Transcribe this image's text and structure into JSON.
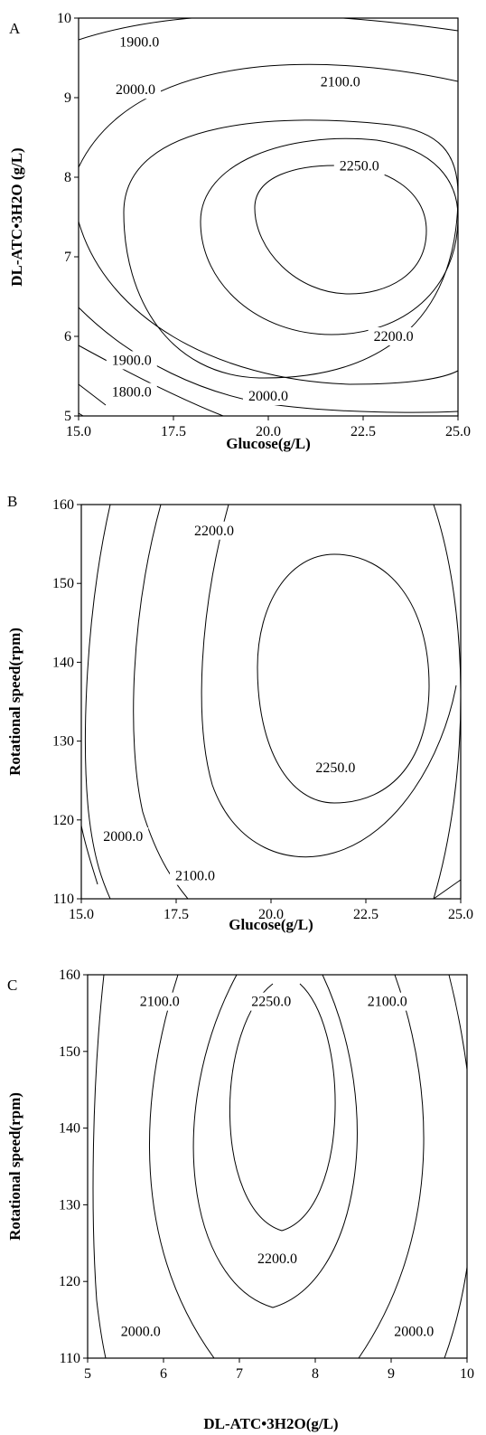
{
  "chart_data": [
    {
      "panel": "A",
      "type": "contour",
      "xlabel": "Glucose(g/L)",
      "ylabel": "DL-ATC•3H2O (g/L)",
      "xlim": [
        15.0,
        25.0
      ],
      "ylim": [
        5,
        10
      ],
      "xticks": [
        "15.0",
        "17.5",
        "20.0",
        "22.5",
        "25.0"
      ],
      "yticks": [
        "5",
        "6",
        "7",
        "8",
        "9",
        "10"
      ],
      "contour_labels": [
        {
          "text": "1900.0",
          "x": 16.6,
          "y": 9.7
        },
        {
          "text": "2000.0",
          "x": 16.5,
          "y": 9.1
        },
        {
          "text": "2100.0",
          "x": 21.9,
          "y": 9.2
        },
        {
          "text": "2250.0",
          "x": 22.4,
          "y": 8.14
        },
        {
          "text": "2200.0",
          "x": 23.3,
          "y": 6.0
        },
        {
          "text": "1900.0",
          "x": 16.4,
          "y": 5.7
        },
        {
          "text": "1800.0",
          "x": 16.4,
          "y": 5.3
        },
        {
          "text": "2000.0",
          "x": 20.0,
          "y": 5.25
        }
      ]
    },
    {
      "panel": "B",
      "type": "contour",
      "xlabel": "Glucose(g/L)",
      "ylabel": "Rotational speed(rpm)",
      "xlim": [
        15.0,
        25.0
      ],
      "ylim": [
        110,
        160
      ],
      "xticks": [
        "15.0",
        "17.5",
        "20.0",
        "22.5",
        "25.0"
      ],
      "yticks": [
        "110",
        "120",
        "130",
        "140",
        "150",
        "160"
      ],
      "contour_labels": [
        {
          "text": "2200.0",
          "x": 18.5,
          "y": 156.7
        },
        {
          "text": "2250.0",
          "x": 21.7,
          "y": 126.6
        },
        {
          "text": "2000.0",
          "x": 16.1,
          "y": 117.9
        },
        {
          "text": "2100.0",
          "x": 18.0,
          "y": 112.9
        }
      ]
    },
    {
      "panel": "C",
      "type": "contour",
      "xlabel": "DL-ATC•3H2O(g/L)",
      "ylabel": "Rotational speed(rpm)",
      "xlim": [
        5,
        10
      ],
      "ylim": [
        110,
        160
      ],
      "xticks": [
        "5",
        "6",
        "7",
        "8",
        "9",
        "10"
      ],
      "yticks": [
        "110",
        "120",
        "130",
        "140",
        "150",
        "160"
      ],
      "contour_labels": [
        {
          "text": "2100.0",
          "x": 5.95,
          "y": 156.5
        },
        {
          "text": "2250.0",
          "x": 7.42,
          "y": 156.5
        },
        {
          "text": "2100.0",
          "x": 8.95,
          "y": 156.5
        },
        {
          "text": "2200.0",
          "x": 7.5,
          "y": 123.0
        },
        {
          "text": "2000.0",
          "x": 5.7,
          "y": 113.5
        },
        {
          "text": "2000.0",
          "x": 9.3,
          "y": 113.5
        }
      ]
    }
  ]
}
